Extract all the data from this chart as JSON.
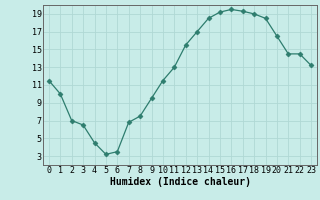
{
  "x": [
    0,
    1,
    2,
    3,
    4,
    5,
    6,
    7,
    8,
    9,
    10,
    11,
    12,
    13,
    14,
    15,
    16,
    17,
    18,
    19,
    20,
    21,
    22,
    23
  ],
  "y": [
    11.5,
    10.0,
    7.0,
    6.5,
    4.5,
    3.2,
    3.5,
    6.8,
    7.5,
    9.5,
    11.5,
    13.0,
    15.5,
    17.0,
    18.5,
    19.2,
    19.5,
    19.3,
    19.0,
    18.5,
    16.5,
    14.5,
    14.5,
    13.2
  ],
  "line_color": "#2e7d6e",
  "marker": "D",
  "marker_size": 2.5,
  "bg_color": "#c8ece8",
  "grid_color": "#b0d8d4",
  "xlabel": "Humidex (Indice chaleur)",
  "xlim": [
    -0.5,
    23.5
  ],
  "ylim": [
    2,
    20
  ],
  "yticks": [
    3,
    5,
    7,
    9,
    11,
    13,
    15,
    17,
    19
  ],
  "xticks": [
    0,
    1,
    2,
    3,
    4,
    5,
    6,
    7,
    8,
    9,
    10,
    11,
    12,
    13,
    14,
    15,
    16,
    17,
    18,
    19,
    20,
    21,
    22,
    23
  ],
  "xlabel_fontsize": 7,
  "tick_fontsize": 6
}
